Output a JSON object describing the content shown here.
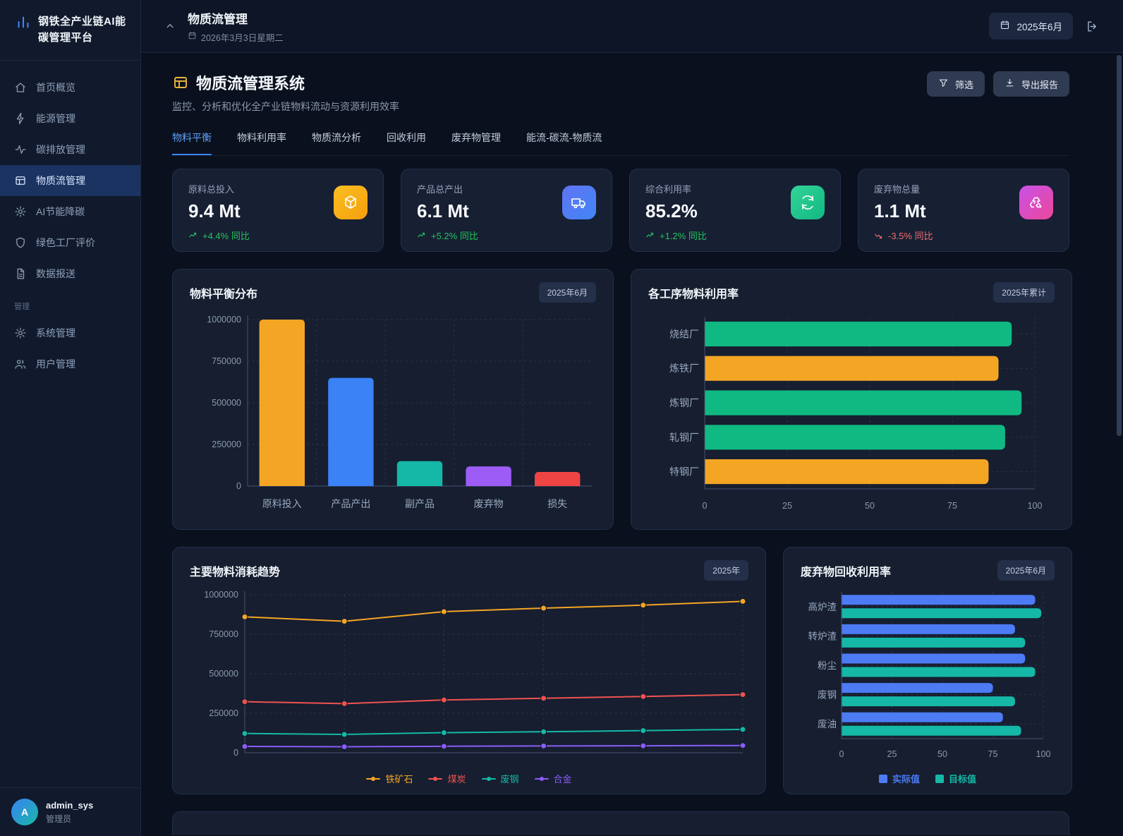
{
  "app": {
    "title": "钢铁全产业链AI能碳管理平台"
  },
  "sidebar": {
    "items": [
      {
        "label": "首页概览",
        "icon": "home",
        "active": false
      },
      {
        "label": "能源管理",
        "icon": "bolt",
        "active": false
      },
      {
        "label": "碳排放管理",
        "icon": "activity",
        "active": false
      },
      {
        "label": "物质流管理",
        "icon": "layout",
        "active": true
      },
      {
        "label": "AI节能降碳",
        "icon": "gear",
        "active": false
      },
      {
        "label": "绿色工厂评价",
        "icon": "shield",
        "active": false
      },
      {
        "label": "数据报送",
        "icon": "file-text",
        "active": false
      }
    ],
    "section_label": "管理",
    "admin_items": [
      {
        "label": "系统管理",
        "icon": "gear",
        "active": false
      },
      {
        "label": "用户管理",
        "icon": "users",
        "active": false
      }
    ],
    "user": {
      "avatar_letter": "A",
      "name": "admin_sys",
      "role": "管理员"
    }
  },
  "header": {
    "title": "物质流管理",
    "date": "2026年3月3日星期二",
    "period_badge": "2025年6月"
  },
  "page": {
    "title": "物质流管理系统",
    "subtitle": "监控、分析和优化全产业链物料流动与资源利用效率",
    "filter_label": "筛选",
    "export_label": "导出报告",
    "tabs": [
      {
        "label": "物料平衡",
        "active": true
      },
      {
        "label": "物料利用率",
        "active": false
      },
      {
        "label": "物质流分析",
        "active": false
      },
      {
        "label": "回收利用",
        "active": false
      },
      {
        "label": "废弃物管理",
        "active": false
      },
      {
        "label": "能流-碳流-物质流",
        "active": false
      }
    ]
  },
  "kpis": [
    {
      "label": "原料总投入",
      "value": "9.4 Mt",
      "delta": "+4.4% 同比",
      "trend": "up",
      "icon": "package",
      "gradient": [
        "#fbbf24",
        "#f59e0b"
      ]
    },
    {
      "label": "产品总产出",
      "value": "6.1 Mt",
      "delta": "+5.2% 同比",
      "trend": "up",
      "icon": "truck",
      "gradient": [
        "#6173f4",
        "#4186f5"
      ]
    },
    {
      "label": "综合利用率",
      "value": "85.2%",
      "delta": "+1.2% 同比",
      "trend": "up",
      "icon": "refresh",
      "gradient": [
        "#34d399",
        "#10b981"
      ]
    },
    {
      "label": "废弃物总量",
      "value": "1.1 Mt",
      "delta": "-3.5% 同比",
      "trend": "down",
      "icon": "recycle",
      "gradient": [
        "#c851e8",
        "#ec4899"
      ]
    }
  ],
  "chart_data": [
    {
      "type": "bar",
      "title": "物料平衡分布",
      "badge": "2025年6月",
      "categories": [
        "原料投入",
        "产品产出",
        "副产品",
        "废弃物",
        "损失"
      ],
      "values": [
        1000000,
        650000,
        150000,
        118000,
        85000
      ],
      "colors": [
        "#f5a524",
        "#3b82f6",
        "#15b8a6",
        "#9d5cf6",
        "#ef4444"
      ],
      "ylim": [
        0,
        1000000
      ],
      "yticks": [
        0,
        250000,
        500000,
        750000,
        1000000
      ],
      "grid": true
    },
    {
      "type": "hbar",
      "title": "各工序物料利用率",
      "badge": "2025年累计",
      "categories": [
        "烧结厂",
        "炼铁厂",
        "炼钢厂",
        "轧钢厂",
        "特钢厂"
      ],
      "values": [
        93,
        89,
        96,
        91,
        86
      ],
      "colors": [
        "#10b981",
        "#f5a524",
        "#10b981",
        "#10b981",
        "#f5a524"
      ],
      "xlim": [
        0,
        100
      ],
      "xticks": [
        0,
        25,
        50,
        75,
        100
      ],
      "grid": true
    },
    {
      "type": "line",
      "title": "主要物料消耗趋势",
      "badge": "2025年",
      "x_points": 6,
      "series": [
        {
          "name": "铁矿石",
          "color": "#f5a524",
          "values": [
            860000,
            832000,
            893000,
            915000,
            934000,
            958000
          ]
        },
        {
          "name": "煤炭",
          "color": "#ef5350",
          "values": [
            323000,
            311000,
            334000,
            345000,
            356000,
            368000
          ]
        },
        {
          "name": "废钢",
          "color": "#15b8a6",
          "values": [
            122000,
            116000,
            127000,
            133000,
            140000,
            148000
          ]
        },
        {
          "name": "合金",
          "color": "#8b5cf6",
          "values": [
            40000,
            38000,
            41000,
            43000,
            44000,
            46000
          ]
        }
      ],
      "ylim": [
        0,
        1000000
      ],
      "yticks": [
        0,
        250000,
        500000,
        750000,
        1000000
      ],
      "legend_position": "bottom",
      "grid": true
    },
    {
      "type": "grouped_hbar",
      "title": "废弃物回收利用率",
      "badge": "2025年6月",
      "categories": [
        "高炉渣",
        "转炉渣",
        "粉尘",
        "废钢",
        "废油"
      ],
      "series": [
        {
          "name": "实际值",
          "color": "#4c7bf4",
          "values": [
            96,
            86,
            91,
            75,
            80
          ]
        },
        {
          "name": "目标值",
          "color": "#15b8a6",
          "values": [
            99,
            91,
            96,
            86,
            89
          ]
        }
      ],
      "xlim": [
        0,
        100
      ],
      "xticks": [
        0,
        25,
        50,
        75,
        100
      ],
      "legend_position": "bottom",
      "grid": true
    }
  ]
}
